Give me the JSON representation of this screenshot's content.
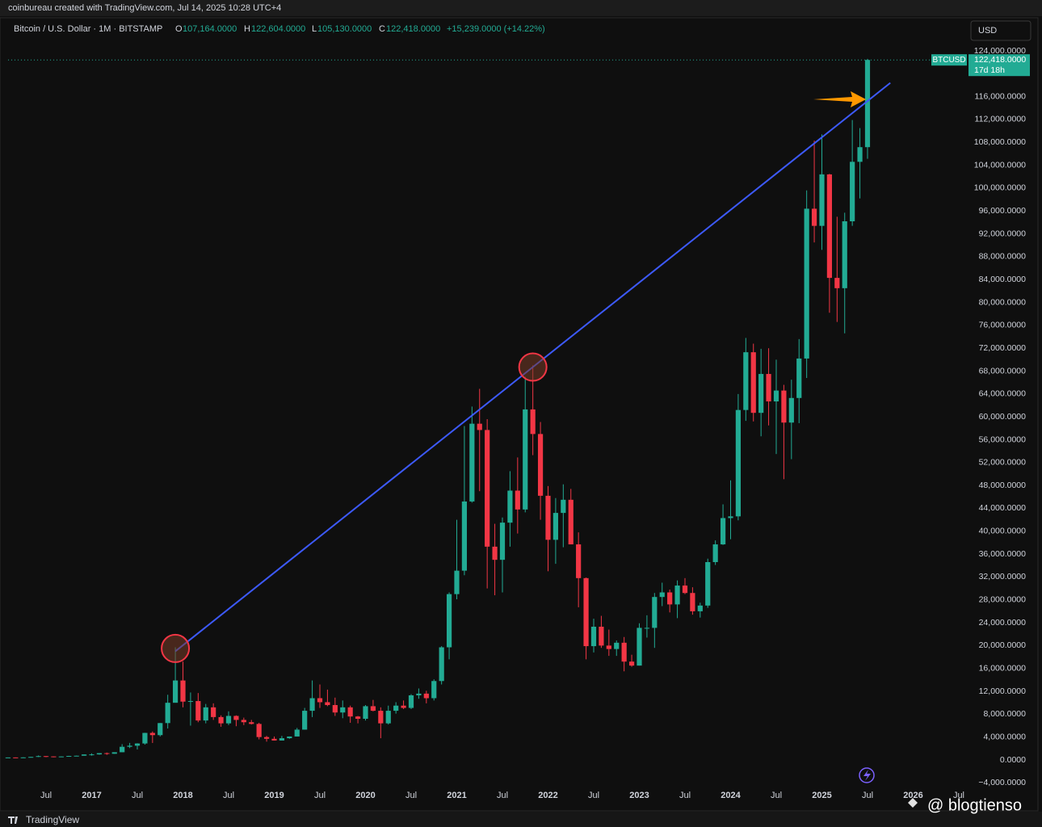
{
  "header": {
    "credit": "coinbureau created with TradingView.com, Jul 14, 2025 10:28 UTC+4"
  },
  "legend": {
    "symbol": "Bitcoin / U.S. Dollar · 1M · BITSTAMP",
    "open_label": "O",
    "open": "107,164.0000",
    "high_label": "H",
    "high": "122,604.0000",
    "low_label": "L",
    "low": "105,130.0000",
    "close_label": "C",
    "close": "122,418.0000",
    "change": "+15,239.0000 (+14.22%)"
  },
  "currency_button": "USD",
  "price_tag": {
    "symbol": "BTCUSD",
    "value": 122418,
    "label": "122,418.0000",
    "countdown": "17d 18h"
  },
  "footer": {
    "brand": "TradingView",
    "watermark": "@ blogtienso"
  },
  "chart_data": {
    "type": "candlestick",
    "up_color": "#22ab94",
    "down_color": "#f23645",
    "x": [
      "2016-02",
      "2016-03",
      "2016-04",
      "2016-05",
      "2016-06",
      "2016-07",
      "2016-08",
      "2016-09",
      "2016-10",
      "2016-11",
      "2016-12",
      "2017-01",
      "2017-02",
      "2017-03",
      "2017-04",
      "2017-05",
      "2017-06",
      "2017-07",
      "2017-08",
      "2017-09",
      "2017-10",
      "2017-11",
      "2017-12",
      "2018-01",
      "2018-02",
      "2018-03",
      "2018-04",
      "2018-05",
      "2018-06",
      "2018-07",
      "2018-08",
      "2018-09",
      "2018-10",
      "2018-11",
      "2018-12",
      "2019-01",
      "2019-02",
      "2019-03",
      "2019-04",
      "2019-05",
      "2019-06",
      "2019-07",
      "2019-08",
      "2019-09",
      "2019-10",
      "2019-11",
      "2019-12",
      "2020-01",
      "2020-02",
      "2020-03",
      "2020-04",
      "2020-05",
      "2020-06",
      "2020-07",
      "2020-08",
      "2020-09",
      "2020-10",
      "2020-11",
      "2020-12",
      "2021-01",
      "2021-02",
      "2021-03",
      "2021-04",
      "2021-05",
      "2021-06",
      "2021-07",
      "2021-08",
      "2021-09",
      "2021-10",
      "2021-11",
      "2021-12",
      "2022-01",
      "2022-02",
      "2022-03",
      "2022-04",
      "2022-05",
      "2022-06",
      "2022-07",
      "2022-08",
      "2022-09",
      "2022-10",
      "2022-11",
      "2022-12",
      "2023-01",
      "2023-02",
      "2023-03",
      "2023-04",
      "2023-05",
      "2023-06",
      "2023-07",
      "2023-08",
      "2023-09",
      "2023-10",
      "2023-11",
      "2023-12",
      "2024-01",
      "2024-02",
      "2024-03",
      "2024-04",
      "2024-05",
      "2024-06",
      "2024-07",
      "2024-08",
      "2024-09",
      "2024-10",
      "2024-11",
      "2024-12",
      "2025-01",
      "2025-02",
      "2025-03",
      "2025-04",
      "2025-05",
      "2025-06",
      "2025-07"
    ],
    "open": [
      370,
      440,
      420,
      450,
      530,
      670,
      620,
      570,
      610,
      700,
      740,
      960,
      970,
      1190,
      1080,
      1350,
      2300,
      2490,
      2880,
      4730,
      4340,
      6450,
      10000,
      13900,
      10200,
      10300,
      6900,
      9200,
      7500,
      6400,
      7700,
      7000,
      6600,
      6300,
      4000,
      3700,
      3400,
      3800,
      4100,
      5300,
      8600,
      10800,
      10100,
      9600,
      8300,
      9200,
      7600,
      7200,
      9400,
      8600,
      6400,
      8600,
      9500,
      9100,
      11300,
      11600,
      10800,
      13800,
      19700,
      29000,
      33100,
      45200,
      58800,
      57700,
      37300,
      35000,
      41500,
      47100,
      43800,
      61300,
      57000,
      46200,
      38500,
      43200,
      45500,
      37700,
      31800,
      19900,
      23300,
      20000,
      19400,
      20500,
      17200,
      16500,
      23100,
      23100,
      28500,
      29300,
      27200,
      30500,
      29200,
      26000,
      27000,
      34600,
      37700,
      42300,
      42600,
      61200,
      71300,
      60700,
      67500,
      62700,
      64600,
      59000,
      63300,
      70200,
      96400,
      93400,
      102400,
      84300,
      82500,
      94200,
      104600,
      107164
    ],
    "high": [
      440,
      440,
      470,
      550,
      780,
      700,
      620,
      630,
      720,
      760,
      980,
      1150,
      1200,
      1290,
      1350,
      2760,
      2980,
      2920,
      4750,
      4980,
      6470,
      11400,
      19700,
      17200,
      11800,
      11700,
      9800,
      9900,
      7800,
      8500,
      7800,
      7400,
      7000,
      6500,
      4200,
      4100,
      4200,
      4100,
      5600,
      9100,
      13900,
      13200,
      12300,
      10900,
      10400,
      9500,
      7700,
      9600,
      10500,
      9200,
      9500,
      10100,
      10400,
      11500,
      12500,
      12100,
      14100,
      19900,
      29300,
      42000,
      58400,
      61800,
      64900,
      59600,
      41300,
      42400,
      50500,
      52900,
      67000,
      69000,
      59100,
      47900,
      45800,
      48200,
      47400,
      39800,
      31900,
      24700,
      25200,
      22800,
      20900,
      21500,
      18400,
      23900,
      25300,
      29200,
      31000,
      29800,
      31400,
      31800,
      30200,
      27500,
      35200,
      38400,
      44700,
      48900,
      64000,
      73800,
      72800,
      71900,
      72000,
      70000,
      65600,
      66500,
      73600,
      99600,
      108300,
      109400,
      102500,
      95000,
      95700,
      111900,
      110500,
      122604
    ],
    "low": [
      360,
      400,
      410,
      440,
      520,
      480,
      470,
      570,
      600,
      680,
      740,
      750,
      920,
      890,
      1080,
      1350,
      2080,
      1830,
      2680,
      2970,
      4110,
      5500,
      10800,
      9200,
      6000,
      6600,
      6400,
      7000,
      5800,
      6100,
      5900,
      6100,
      6200,
      3600,
      3200,
      3400,
      3400,
      3700,
      4100,
      5300,
      7500,
      9100,
      9400,
      7700,
      7300,
      6500,
      6400,
      6900,
      8500,
      3800,
      6200,
      8100,
      8900,
      8900,
      10700,
      9900,
      10400,
      13200,
      17600,
      28100,
      32300,
      45000,
      47000,
      30000,
      28800,
      29300,
      37300,
      39600,
      43300,
      53300,
      42000,
      33000,
      34300,
      37200,
      37700,
      26700,
      17600,
      18800,
      19600,
      18200,
      18200,
      15500,
      16300,
      16500,
      21400,
      19600,
      26900,
      25800,
      24800,
      29000,
      25400,
      24900,
      26600,
      34100,
      37600,
      38600,
      41900,
      59300,
      59200,
      56600,
      58500,
      53500,
      49100,
      52600,
      58900,
      66800,
      90500,
      89200,
      78200,
      76600,
      74600,
      93400,
      98200,
      105130
    ],
    "close": [
      440,
      420,
      450,
      530,
      670,
      620,
      570,
      610,
      700,
      740,
      960,
      970,
      1190,
      1080,
      1350,
      2300,
      2490,
      2880,
      4730,
      4340,
      6450,
      10000,
      13900,
      10200,
      10300,
      6900,
      9200,
      7500,
      6400,
      7700,
      7000,
      6600,
      6300,
      4000,
      3700,
      3400,
      3800,
      4100,
      5300,
      8600,
      10800,
      10100,
      9600,
      8300,
      9200,
      7600,
      7200,
      9400,
      8600,
      6400,
      8600,
      9500,
      9100,
      11300,
      11600,
      10800,
      13800,
      19700,
      29000,
      33100,
      45200,
      58800,
      57700,
      37300,
      35000,
      41500,
      47100,
      43800,
      61300,
      57000,
      46200,
      38500,
      43200,
      45500,
      37700,
      31800,
      19900,
      23300,
      20000,
      19400,
      20500,
      17200,
      16500,
      23100,
      23100,
      28500,
      29300,
      27200,
      30500,
      29200,
      26000,
      27000,
      34600,
      37700,
      42300,
      42600,
      61200,
      71300,
      60700,
      67500,
      62700,
      64600,
      59000,
      63300,
      70200,
      96400,
      93400,
      102400,
      84300,
      82500,
      94200,
      104600,
      107164,
      122418
    ],
    "xlim": [
      "2016-01",
      "2026-08"
    ],
    "xticks": [
      {
        "value": "2016-07",
        "label": "Jul"
      },
      {
        "value": "2017-01",
        "label": "2017"
      },
      {
        "value": "2017-07",
        "label": "Jul"
      },
      {
        "value": "2018-01",
        "label": "2018"
      },
      {
        "value": "2018-07",
        "label": "Jul"
      },
      {
        "value": "2019-01",
        "label": "2019"
      },
      {
        "value": "2019-07",
        "label": "Jul"
      },
      {
        "value": "2020-01",
        "label": "2020"
      },
      {
        "value": "2020-07",
        "label": "Jul"
      },
      {
        "value": "2021-01",
        "label": "2021"
      },
      {
        "value": "2021-07",
        "label": "Jul"
      },
      {
        "value": "2022-01",
        "label": "2022"
      },
      {
        "value": "2022-07",
        "label": "Jul"
      },
      {
        "value": "2023-01",
        "label": "2023"
      },
      {
        "value": "2023-07",
        "label": "Jul"
      },
      {
        "value": "2024-01",
        "label": "2024"
      },
      {
        "value": "2024-07",
        "label": "Jul"
      },
      {
        "value": "2025-01",
        "label": "2025"
      },
      {
        "value": "2025-07",
        "label": "Jul"
      },
      {
        "value": "2026-01",
        "label": "2026"
      },
      {
        "value": "2026-07",
        "label": "Jul"
      }
    ],
    "ylim": [
      -4000,
      124000
    ],
    "yticks": [
      {
        "value": 124000,
        "label": "124,000.0000"
      },
      {
        "value": 116000,
        "label": "116,000.0000"
      },
      {
        "value": 112000,
        "label": "112,000.0000"
      },
      {
        "value": 108000,
        "label": "108,000.0000"
      },
      {
        "value": 104000,
        "label": "104,000.0000"
      },
      {
        "value": 100000,
        "label": "100,000.0000"
      },
      {
        "value": 96000,
        "label": "96,000.0000"
      },
      {
        "value": 92000,
        "label": "92,000.0000"
      },
      {
        "value": 88000,
        "label": "88,000.0000"
      },
      {
        "value": 84000,
        "label": "84,000.0000"
      },
      {
        "value": 80000,
        "label": "80,000.0000"
      },
      {
        "value": 76000,
        "label": "76,000.0000"
      },
      {
        "value": 72000,
        "label": "72,000.0000"
      },
      {
        "value": 68000,
        "label": "68,000.0000"
      },
      {
        "value": 64000,
        "label": "64,000.0000"
      },
      {
        "value": 60000,
        "label": "60,000.0000"
      },
      {
        "value": 56000,
        "label": "56,000.0000"
      },
      {
        "value": 52000,
        "label": "52,000.0000"
      },
      {
        "value": 48000,
        "label": "48,000.0000"
      },
      {
        "value": 44000,
        "label": "44,000.0000"
      },
      {
        "value": 40000,
        "label": "40,000.0000"
      },
      {
        "value": 36000,
        "label": "36,000.0000"
      },
      {
        "value": 32000,
        "label": "32,000.0000"
      },
      {
        "value": 28000,
        "label": "28,000.0000"
      },
      {
        "value": 24000,
        "label": "24,000.0000"
      },
      {
        "value": 20000,
        "label": "20,000.0000"
      },
      {
        "value": 16000,
        "label": "16,000.0000"
      },
      {
        "value": 12000,
        "label": "12,000.0000"
      },
      {
        "value": 8000,
        "label": "8,000.0000"
      },
      {
        "value": 4000,
        "label": "4,000.0000"
      },
      {
        "value": 0,
        "label": "0.0000"
      },
      {
        "value": -4000,
        "label": "−4,000.0000"
      }
    ],
    "grid": false,
    "trendline": {
      "color": "#3d5afe",
      "x": [
        "2017-12",
        "2025-10"
      ],
      "y": [
        19000,
        118400
      ]
    },
    "highlights": {
      "color": "#f23645",
      "x": [
        "2017-12",
        "2021-11"
      ],
      "y": [
        19500,
        68700
      ]
    }
  }
}
